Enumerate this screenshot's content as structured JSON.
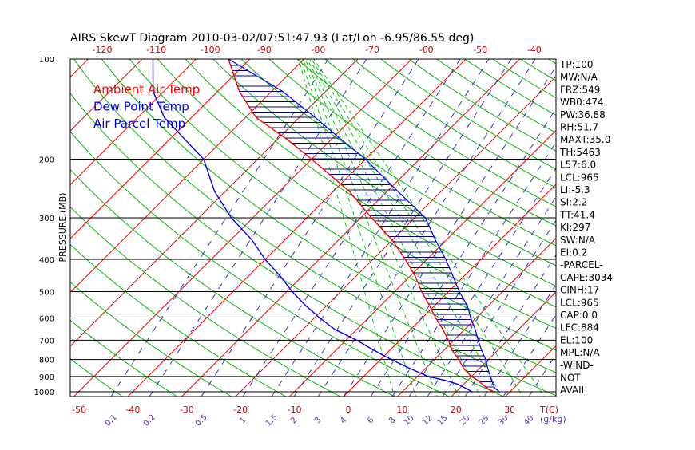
{
  "chart_data": {
    "type": "line",
    "title": "AIRS SkewT Diagram 2010-03-02/07:51:47.93 (Lat/Lon -6.95/86.55 deg)",
    "ylabel": "PRESSURE (MB)",
    "y_scale": "log",
    "ylim": [
      1050,
      100
    ],
    "pressure_ticks": [
      100,
      200,
      300,
      400,
      500,
      600,
      700,
      800,
      900,
      1000
    ],
    "top_temp_ticks": [
      -120,
      -110,
      -100,
      -90,
      -80,
      -70,
      -60,
      -50,
      -40
    ],
    "bottom_temp_ticks": [
      -50,
      -40,
      -30,
      -20,
      -10,
      0,
      10,
      20,
      30
    ],
    "bottom_temp_unit": "T(C)",
    "mixing_ratio_ticks": [
      "0.1",
      "0.2",
      "0.5",
      "1",
      "1.5",
      "2",
      "3",
      "4",
      "6",
      "8",
      "10",
      "12",
      "15",
      "20",
      "25",
      "30",
      "40"
    ],
    "mixing_ratio_unit": "(g/kg)",
    "legend": [
      {
        "label": "Ambient Air Temp",
        "color": "#ff0000"
      },
      {
        "label": "Dew Point Temp",
        "color": "#0000ff"
      },
      {
        "label": "Air Parcel Temp",
        "color": "#0000ff"
      }
    ],
    "series": [
      {
        "name": "Ambient Air Temp",
        "color": "#ff0000",
        "points": [
          {
            "p": 1000,
            "t": 27.0
          },
          {
            "p": 975,
            "t": 25.0
          },
          {
            "p": 950,
            "t": 23.5
          },
          {
            "p": 925,
            "t": 22.0
          },
          {
            "p": 900,
            "t": 20.0
          },
          {
            "p": 850,
            "t": 17.0
          },
          {
            "p": 800,
            "t": 14.5
          },
          {
            "p": 750,
            "t": 11.5
          },
          {
            "p": 700,
            "t": 9.0
          },
          {
            "p": 650,
            "t": 6.0
          },
          {
            "p": 600,
            "t": 2.5
          },
          {
            "p": 550,
            "t": -1.0
          },
          {
            "p": 500,
            "t": -5.0
          },
          {
            "p": 450,
            "t": -9.0
          },
          {
            "p": 400,
            "t": -14.0
          },
          {
            "p": 350,
            "t": -20.0
          },
          {
            "p": 300,
            "t": -28.0
          },
          {
            "p": 250,
            "t": -37.0
          },
          {
            "p": 200,
            "t": -50.0
          },
          {
            "p": 175,
            "t": -58.0
          },
          {
            "p": 150,
            "t": -68.0
          },
          {
            "p": 125,
            "t": -76.0
          },
          {
            "p": 100,
            "t": -84.0
          }
        ]
      },
      {
        "name": "Dew Point Temp",
        "color": "#0000ff",
        "points": [
          {
            "p": 1000,
            "t": 23.0
          },
          {
            "p": 975,
            "t": 21.0
          },
          {
            "p": 950,
            "t": 19.0
          },
          {
            "p": 925,
            "t": 16.0
          },
          {
            "p": 900,
            "t": 12.0
          },
          {
            "p": 850,
            "t": 7.0
          },
          {
            "p": 800,
            "t": 2.0
          },
          {
            "p": 750,
            "t": -3.0
          },
          {
            "p": 700,
            "t": -8.0
          },
          {
            "p": 650,
            "t": -14.0
          },
          {
            "p": 600,
            "t": -19.0
          },
          {
            "p": 550,
            "t": -24.0
          },
          {
            "p": 500,
            "t": -29.0
          },
          {
            "p": 450,
            "t": -34.0
          },
          {
            "p": 400,
            "t": -40.0
          },
          {
            "p": 350,
            "t": -46.0
          },
          {
            "p": 300,
            "t": -54.0
          },
          {
            "p": 250,
            "t": -62.0
          },
          {
            "p": 200,
            "t": -70.0
          },
          {
            "p": 175,
            "t": -77.0
          },
          {
            "p": 150,
            "t": -85.0
          },
          {
            "p": 125,
            "t": -92.0
          },
          {
            "p": 100,
            "t": -98.0
          }
        ]
      },
      {
        "name": "Air Parcel Temp",
        "color": "#0000ff",
        "points": [
          {
            "p": 1000,
            "t": 28.0
          },
          {
            "p": 975,
            "t": 26.5
          },
          {
            "p": 950,
            "t": 25.5
          },
          {
            "p": 925,
            "t": 24.5
          },
          {
            "p": 900,
            "t": 23.5
          },
          {
            "p": 850,
            "t": 21.5
          },
          {
            "p": 800,
            "t": 19.5
          },
          {
            "p": 750,
            "t": 17.0
          },
          {
            "p": 700,
            "t": 14.5
          },
          {
            "p": 650,
            "t": 12.0
          },
          {
            "p": 600,
            "t": 9.0
          },
          {
            "p": 550,
            "t": 6.0
          },
          {
            "p": 500,
            "t": 2.0
          },
          {
            "p": 450,
            "t": -2.0
          },
          {
            "p": 400,
            "t": -6.5
          },
          {
            "p": 350,
            "t": -12.0
          },
          {
            "p": 300,
            "t": -18.0
          },
          {
            "p": 250,
            "t": -28.0
          },
          {
            "p": 200,
            "t": -40.0
          },
          {
            "p": 175,
            "t": -48.0
          },
          {
            "p": 150,
            "t": -57.0
          },
          {
            "p": 125,
            "t": -68.0
          },
          {
            "p": 100,
            "t": -84.0
          }
        ]
      }
    ],
    "indices": [
      "TP:100",
      "MW:N/A",
      "FRZ:549",
      "WB0:474",
      "PW:36.88",
      "RH:51.7",
      "MAXT:35.0",
      "TH:5463",
      "L57:6.0",
      "LCL:965",
      "LI:-5.3",
      "SI:2.2",
      "TT:41.4",
      "KI:297",
      "SW:N/A",
      "EI:0.2",
      "-PARCEL-",
      "CAPE:3034",
      "CINH:17",
      "LCL:965",
      "CAP:0.0",
      "LFC:884",
      "EL:100",
      "MPL:N/A",
      "-WIND-",
      "NOT",
      "AVAIL"
    ],
    "colors": {
      "isotherm": "#ff0000",
      "dry_adiabat": "#00bb00",
      "moist_adiabat": "#00cc00",
      "mixing_ratio": "#3333cc",
      "hatch": "#000080",
      "frame": "#000000"
    }
  }
}
